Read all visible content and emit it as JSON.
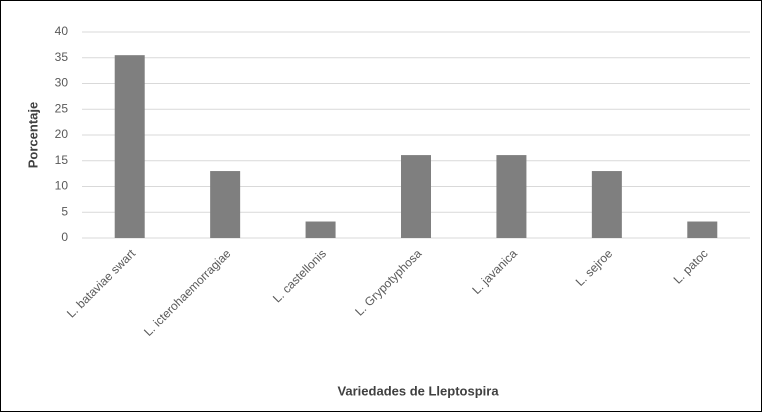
{
  "chart_data": {
    "type": "bar",
    "xlabel": "Variedades de Lleptospira",
    "ylabel": "Porcentaje",
    "categories": [
      "L. bataviae swart",
      "L. icterohaemorragiae",
      "L. castellonis",
      "L. Grypotyphosa",
      "L. javanica",
      "L. sejroe",
      "L. patoc"
    ],
    "values": [
      35.5,
      13,
      3.2,
      16.1,
      16.1,
      13,
      3.2
    ],
    "color": "#7f7f7f",
    "ylim": [
      0,
      40
    ],
    "yticks": [
      0,
      5,
      10,
      15,
      20,
      25,
      30,
      35,
      40
    ],
    "grid": true
  }
}
